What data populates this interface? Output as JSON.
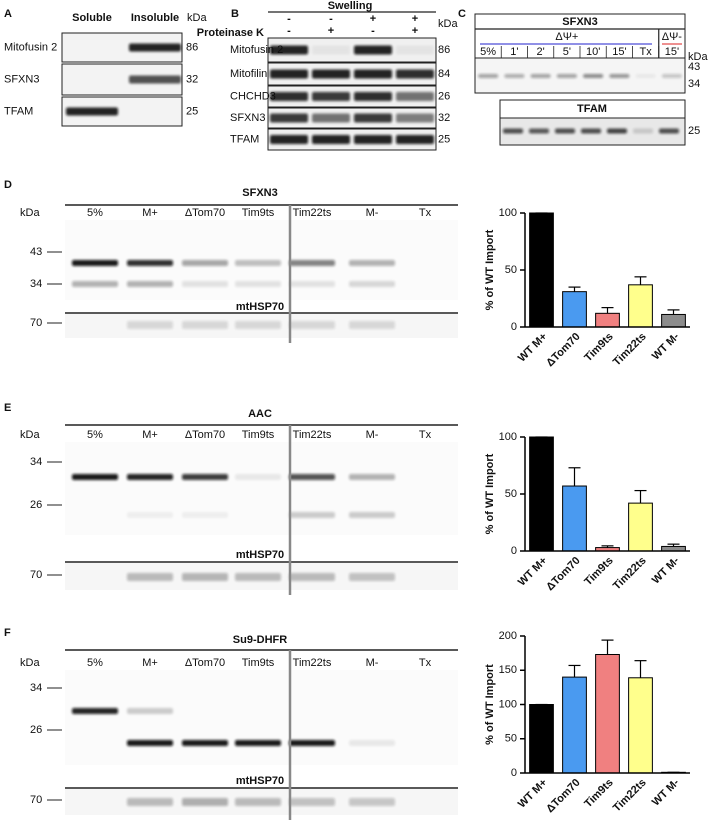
{
  "panels": [
    {
      "letter": "A",
      "columns": [
        "Soluble",
        "Insoluble"
      ],
      "unit": "kDa",
      "rows": [
        {
          "label": "Mitofusin 2",
          "kda": 86
        },
        {
          "label": "SFXN3",
          "kda": 32
        },
        {
          "label": "TFAM",
          "kda": 25
        }
      ]
    },
    {
      "letter": "B",
      "header": "Swelling",
      "condition": "Proteinase K",
      "signs": [
        [
          "-",
          "-",
          "+",
          "+"
        ],
        [
          "-",
          "+",
          "-",
          "+"
        ]
      ],
      "unit": "kDa",
      "rows": [
        {
          "label": "Mitofusin 2",
          "kda": 86
        },
        {
          "label": "Mitofilin",
          "kda": 84
        },
        {
          "label": "CHCHD3",
          "kda": 26
        },
        {
          "label": "SFXN3",
          "kda": 32
        },
        {
          "label": "TFAM",
          "kda": 25
        }
      ]
    },
    {
      "letter": "C",
      "unit": "kDa",
      "blots": [
        {
          "title": "SFXN3",
          "conditions": [
            "ΔΨ+",
            "ΔΨ-"
          ],
          "lanes": [
            "5%",
            "1'",
            "2'",
            "5'",
            "10'",
            "15'",
            "Tx",
            "15'"
          ],
          "markers": [
            43,
            34
          ]
        },
        {
          "title": "TFAM",
          "markers": [
            25
          ]
        }
      ]
    },
    {
      "letter": "D",
      "title": "SFXN3",
      "unit": "kDa",
      "lanes": [
        "5%",
        "M+",
        "ΔTom70",
        "Tim9ts",
        "Tim22ts",
        "M-",
        "Tx"
      ],
      "markers": [
        43,
        34
      ],
      "loading": "mtHSP70",
      "loading_markers": [
        70
      ]
    },
    {
      "letter": "E",
      "title": "AAC",
      "unit": "kDa",
      "lanes": [
        "5%",
        "M+",
        "ΔTom70",
        "Tim9ts",
        "Tim22ts",
        "M-",
        "Tx"
      ],
      "markers": [
        34,
        26
      ],
      "loading": "mtHSP70",
      "loading_markers": [
        70
      ]
    },
    {
      "letter": "F",
      "title": "Su9-DHFR",
      "unit": "kDa",
      "lanes": [
        "5%",
        "M+",
        "ΔTom70",
        "Tim9ts",
        "Tim22ts",
        "M-",
        "Tx"
      ],
      "markers": [
        34,
        26
      ],
      "loading": "mtHSP70",
      "loading_markers": [
        70
      ]
    }
  ],
  "chart_data": [
    {
      "type": "bar",
      "ylabel": "% of WT Import",
      "categories": [
        "WT M+",
        "ΔTom70",
        "Tim9ts",
        "Tim22ts",
        "WT M-"
      ],
      "values": [
        100,
        31,
        12,
        37,
        11
      ],
      "errors": [
        0,
        4,
        5,
        7,
        4
      ],
      "colors": [
        "#000000",
        "#4a9af0",
        "#f08080",
        "#ffff8c",
        "#8c8c8c"
      ],
      "ylim": [
        0,
        100
      ],
      "yticks": [
        0,
        50,
        100
      ]
    },
    {
      "type": "bar",
      "ylabel": "% of WT Import",
      "categories": [
        "WT M+",
        "ΔTom70",
        "Tim9ts",
        "Tim22ts",
        "WT M-"
      ],
      "values": [
        100,
        57,
        3,
        42,
        4
      ],
      "errors": [
        0,
        16,
        1.5,
        11,
        2
      ],
      "colors": [
        "#000000",
        "#4a9af0",
        "#f08080",
        "#ffff8c",
        "#8c8c8c"
      ],
      "ylim": [
        0,
        100
      ],
      "yticks": [
        0,
        50,
        100
      ]
    },
    {
      "type": "bar",
      "ylabel": "% of WT Import",
      "categories": [
        "WT M+",
        "ΔTom70",
        "Tim9ts",
        "Tim22ts",
        "WT M-"
      ],
      "values": [
        100,
        140,
        173,
        139,
        1
      ],
      "errors": [
        0,
        17,
        21,
        25,
        0
      ],
      "colors": [
        "#000000",
        "#4a9af0",
        "#f08080",
        "#ffff8c",
        "#8c8c8c"
      ],
      "ylim": [
        0,
        200
      ],
      "yticks": [
        0,
        50,
        100,
        150,
        200
      ]
    }
  ]
}
